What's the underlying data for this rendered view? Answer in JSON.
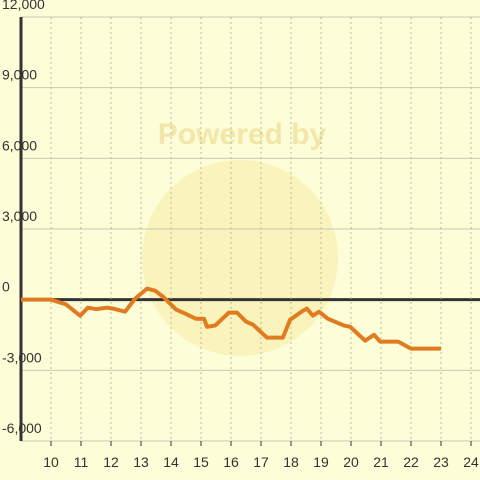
{
  "chart_data": {
    "type": "line",
    "watermark": "Powered by",
    "x": [
      9.0,
      10.0,
      10.5,
      10.97,
      11.23,
      11.5,
      11.87,
      12.07,
      12.47,
      12.8,
      13.2,
      13.47,
      13.73,
      14.17,
      14.47,
      14.83,
      15.1,
      15.2,
      15.47,
      15.93,
      16.2,
      16.5,
      16.73,
      17.2,
      17.73,
      17.97,
      18.4,
      18.53,
      18.73,
      18.93,
      19.23,
      19.77,
      19.97,
      20.47,
      20.77,
      20.97,
      21.57,
      22.0,
      23.0
    ],
    "series": [
      {
        "color": "#e07b20",
        "values": [
          0,
          0,
          -200,
          -680,
          -340,
          -400,
          -340,
          -380,
          -510,
          40,
          470,
          380,
          130,
          -420,
          -590,
          -810,
          -810,
          -1150,
          -1100,
          -550,
          -550,
          -930,
          -1060,
          -1610,
          -1610,
          -850,
          -470,
          -380,
          -680,
          -510,
          -810,
          -1100,
          -1150,
          -1740,
          -1490,
          -1780,
          -1780,
          -2080,
          -2080
        ]
      }
    ],
    "xlim": [
      9,
      24.3
    ],
    "xticks": [
      10,
      11,
      12,
      13,
      14,
      15,
      16,
      17,
      18,
      19,
      20,
      21,
      22,
      23,
      24
    ],
    "ylim": [
      -6000,
      12000
    ],
    "yticks": [
      {
        "value": -6000,
        "label": "-6,000"
      },
      {
        "value": -3000,
        "label": "-3,000"
      },
      0,
      {
        "value": 3000,
        "label": "3,000"
      },
      {
        "value": 6000,
        "label": "6,000"
      },
      {
        "value": 9000,
        "label": "9,000"
      },
      {
        "value": 12000,
        "label": "12,000"
      }
    ],
    "grid": true
  }
}
